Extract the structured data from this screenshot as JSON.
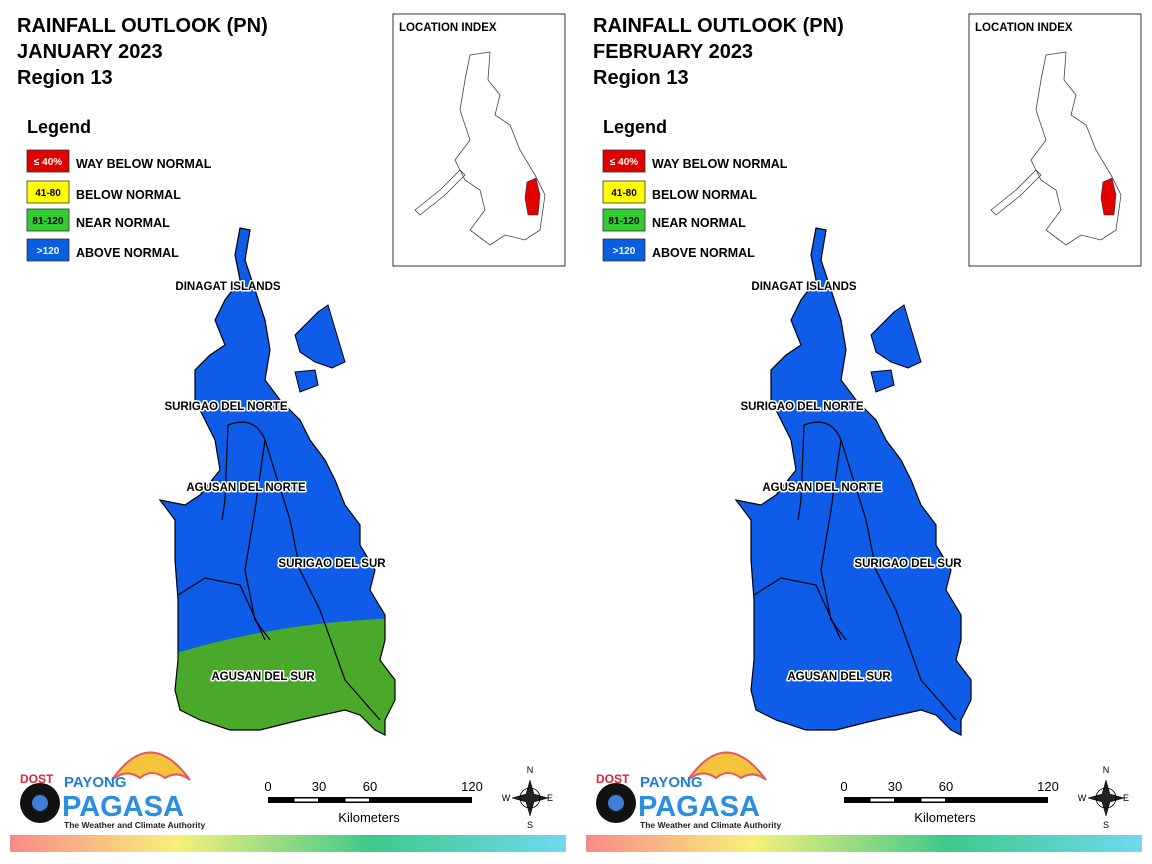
{
  "panels": [
    {
      "title_lines": [
        "RAINFALL OUTLOOK (PN)",
        "JANUARY 2023",
        "Region 13"
      ],
      "legend": {
        "title": "Legend",
        "items": [
          {
            "swatch": "≤ 40%",
            "label": "WAY BELOW NORMAL",
            "color": "#e00000"
          },
          {
            "swatch": "41-80",
            "label": "BELOW NORMAL",
            "color": "#ffff00"
          },
          {
            "swatch": "81-120",
            "label": "NEAR NORMAL",
            "color": "#33cc33"
          },
          {
            "swatch": ">120",
            "label": "ABOVE NORMAL",
            "color": "#0a5fe0"
          }
        ]
      },
      "inset_title": "LOCATION INDEX",
      "map_colors": {
        "north": "#0e5ce8",
        "south": "#4aa82a"
      },
      "region_labels": [
        "DINAGAT ISLANDS",
        "SURIGAO DEL NORTE",
        "AGUSAN DEL NORTE",
        "SURIGAO DEL SUR",
        "AGUSAN DEL SUR"
      ],
      "scale": {
        "ticks": [
          0,
          30,
          60,
          120
        ],
        "unit": "Kilometers"
      },
      "compass": [
        "N",
        "E",
        "S",
        "W"
      ],
      "logo": {
        "agency": "DOST",
        "top": "PAYONG",
        "name": "PAGASA",
        "tagline": "The Weather and Climate Authority"
      }
    },
    {
      "title_lines": [
        "RAINFALL OUTLOOK (PN)",
        "FEBRUARY 2023",
        "Region 13"
      ],
      "legend": {
        "title": "Legend",
        "items": [
          {
            "swatch": "≤ 40%",
            "label": "WAY BELOW NORMAL",
            "color": "#e00000"
          },
          {
            "swatch": "41-80",
            "label": "BELOW NORMAL",
            "color": "#ffff00"
          },
          {
            "swatch": "81-120",
            "label": "NEAR NORMAL",
            "color": "#33cc33"
          },
          {
            "swatch": ">120",
            "label": "ABOVE NORMAL",
            "color": "#0a5fe0"
          }
        ]
      },
      "inset_title": "LOCATION INDEX",
      "map_colors": {
        "north": "#0e5ce8",
        "south": "#0e5ce8"
      },
      "region_labels": [
        "DINAGAT ISLANDS",
        "SURIGAO DEL NORTE",
        "AGUSAN DEL NORTE",
        "SURIGAO DEL SUR",
        "AGUSAN DEL SUR"
      ],
      "scale": {
        "ticks": [
          0,
          30,
          60,
          120
        ],
        "unit": "Kilometers"
      },
      "compass": [
        "N",
        "E",
        "S",
        "W"
      ],
      "logo": {
        "agency": "DOST",
        "top": "PAYONG",
        "name": "PAGASA",
        "tagline": "The Weather and Climate Authority"
      }
    }
  ]
}
